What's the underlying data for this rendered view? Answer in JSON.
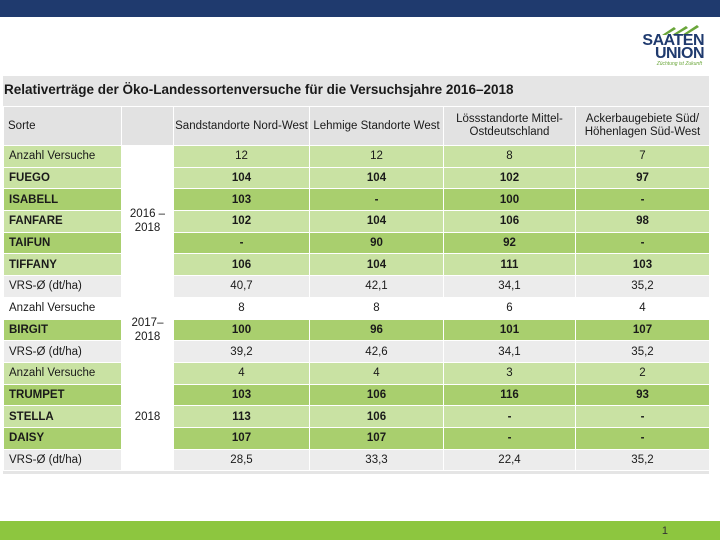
{
  "logo": {
    "line1": "SAATEN",
    "line2": "UNION",
    "tagline": "Züchtung ist Zukunft"
  },
  "title": "Relativerträge der Öko-Landessortenversuche für die Versuchsjahre 2016–2018",
  "headers": [
    "Sorte",
    "",
    "Sandstandorte Nord-West",
    "Lehmige Standorte West",
    "Lössstandorte Mittel-Ostdeutschland",
    "Ackerbaugebiete Süd/ Höhenlagen Süd-West"
  ],
  "groups": [
    {
      "years": "2016 – 2018",
      "rows": [
        {
          "name": "Anzahl Versuche",
          "vals": [
            "12",
            "12",
            "8",
            "7"
          ]
        },
        {
          "name": "FUEGO",
          "vals": [
            "104",
            "104",
            "102",
            "97"
          ]
        },
        {
          "name": "ISABELL",
          "vals": [
            "103",
            "-",
            "100",
            "-"
          ]
        },
        {
          "name": "FANFARE",
          "vals": [
            "102",
            "104",
            "106",
            "98"
          ]
        },
        {
          "name": "TAIFUN",
          "vals": [
            "-",
            "90",
            "92",
            "-"
          ]
        },
        {
          "name": "TIFFANY",
          "vals": [
            "106",
            "104",
            "111",
            "103"
          ]
        },
        {
          "name": "VRS-Ø (dt/ha)",
          "vals": [
            "40,7",
            "42,1",
            "34,1",
            "35,2"
          ]
        }
      ]
    },
    {
      "years": "2017– 2018",
      "rows": [
        {
          "name": "Anzahl Versuche",
          "vals": [
            "8",
            "8",
            "6",
            "4"
          ]
        },
        {
          "name": "BIRGIT",
          "vals": [
            "100",
            "96",
            "101",
            "107"
          ]
        },
        {
          "name": "VRS-Ø (dt/ha)",
          "vals": [
            "39,2",
            "42,6",
            "34,1",
            "35,2"
          ]
        }
      ]
    },
    {
      "years": "2018",
      "rows": [
        {
          "name": "Anzahl Versuche",
          "vals": [
            "4",
            "4",
            "3",
            "2"
          ]
        },
        {
          "name": "TRUMPET",
          "vals": [
            "103",
            "106",
            "116",
            "93"
          ]
        },
        {
          "name": "STELLA",
          "vals": [
            "113",
            "106",
            "-",
            "-"
          ]
        },
        {
          "name": "DAISY",
          "vals": [
            "107",
            "107",
            "-",
            "-"
          ]
        },
        {
          "name": "VRS-Ø (dt/ha)",
          "vals": [
            "28,5",
            "33,3",
            "22,4",
            "35,2"
          ]
        }
      ]
    }
  ],
  "page_number": "1",
  "colors": {
    "header_bar": "#1f3a6e",
    "footer_bar": "#8dc63f",
    "variety_row": "#a9cf6e",
    "light_row": "#c9e2a3"
  }
}
